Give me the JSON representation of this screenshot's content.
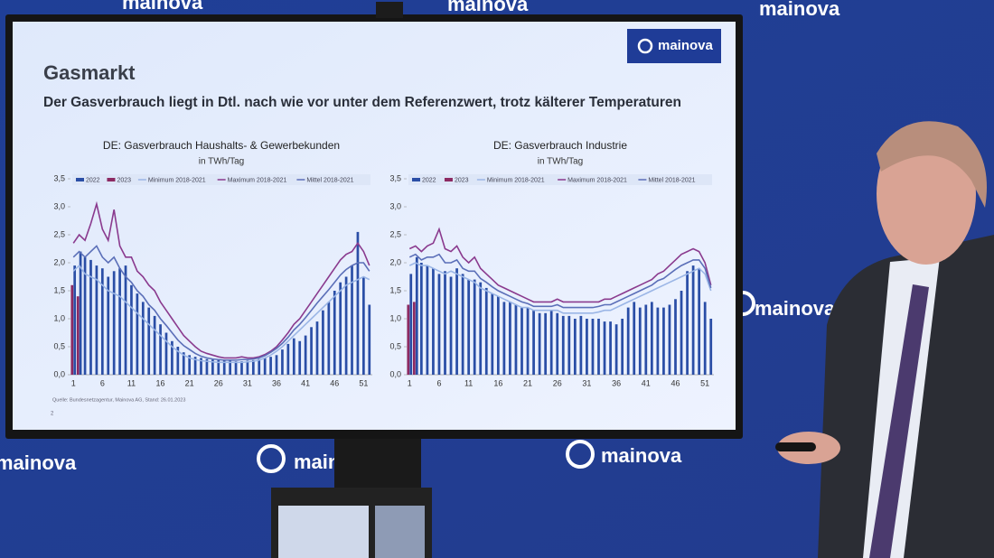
{
  "slide": {
    "title": "Gasmarkt",
    "subtitle": "Der Gasverbrauch liegt in Dtl. nach wie vor unter dem Referenzwert, trotz kälterer Temperaturen",
    "logo": "mainova",
    "source": "Quelle: Bundesnetzagentur, Mainova AG, Stand: 26.01.2023",
    "page": "2"
  },
  "wall": {
    "logo": "mainova"
  },
  "chart_data": [
    {
      "type": "combo",
      "title": "DE: Gasverbrauch Haushalts- & Gewerbekunden",
      "subtitle": "in TWh/Tag",
      "categories": [
        "1",
        null,
        null,
        null,
        null,
        "6",
        null,
        null,
        null,
        null,
        "11",
        null,
        null,
        null,
        null,
        "16",
        null,
        null,
        null,
        null,
        "21",
        null,
        null,
        null,
        null,
        "26",
        null,
        null,
        null,
        null,
        "31",
        null,
        null,
        null,
        null,
        "36",
        null,
        null,
        null,
        null,
        "41",
        null,
        null,
        null,
        null,
        "46",
        null,
        null,
        null,
        null,
        "51",
        null
      ],
      "ylim": [
        0,
        3.5
      ],
      "yticks": [
        {
          "value": 0,
          "label": "0,0"
        },
        {
          "value": 0.5,
          "label": "0,5"
        },
        {
          "value": 1,
          "label": "1,0"
        },
        {
          "value": 1.5,
          "label": "1,5"
        },
        {
          "value": 2,
          "label": "2,0"
        },
        {
          "value": 2.5,
          "label": "2,5"
        },
        {
          "value": 3,
          "label": "3,0"
        },
        {
          "value": 3.5,
          "label": "3,5"
        }
      ],
      "series": [
        {
          "name": "2022",
          "type": "bar",
          "color": "#2a4ea6",
          "values": [
            1.95,
            2.2,
            2.1,
            2.05,
            1.95,
            1.9,
            1.75,
            1.85,
            1.9,
            1.95,
            1.6,
            1.45,
            1.3,
            1.2,
            1.05,
            0.9,
            0.75,
            0.6,
            0.5,
            0.4,
            0.35,
            0.32,
            0.3,
            0.28,
            0.27,
            0.26,
            0.25,
            0.25,
            0.24,
            0.24,
            0.25,
            0.26,
            0.28,
            0.3,
            0.32,
            0.35,
            0.45,
            0.55,
            0.65,
            0.6,
            0.7,
            0.85,
            0.95,
            1.15,
            1.3,
            1.5,
            1.65,
            1.75,
            1.95,
            2.55,
            1.75,
            1.25
          ]
        },
        {
          "name": "2023",
          "type": "bar",
          "color": "#8c2a62",
          "values": [
            1.6,
            1.4,
            null,
            null,
            null,
            null,
            null,
            null,
            null,
            null,
            null,
            null,
            null,
            null,
            null,
            null,
            null,
            null,
            null,
            null,
            null,
            null,
            null,
            null,
            null,
            null,
            null,
            null,
            null,
            null,
            null,
            null,
            null,
            null,
            null,
            null,
            null,
            null,
            null,
            null,
            null,
            null,
            null,
            null,
            null,
            null,
            null,
            null,
            null,
            null,
            null,
            null
          ]
        },
        {
          "name": "Minimum 2018-2021",
          "type": "line",
          "color": "#9bb6e6",
          "values": [
            1.85,
            1.95,
            1.8,
            1.75,
            1.7,
            1.6,
            1.5,
            1.45,
            1.4,
            1.3,
            1.2,
            1.1,
            1.0,
            0.9,
            0.8,
            0.7,
            0.6,
            0.5,
            0.42,
            0.35,
            0.3,
            0.27,
            0.25,
            0.24,
            0.23,
            0.22,
            0.22,
            0.22,
            0.22,
            0.22,
            0.23,
            0.24,
            0.26,
            0.3,
            0.35,
            0.42,
            0.5,
            0.6,
            0.7,
            0.8,
            0.9,
            1.0,
            1.1,
            1.2,
            1.3,
            1.4,
            1.5,
            1.6,
            1.65,
            1.7,
            1.75,
            1.7
          ]
        },
        {
          "name": "Maximum 2018-2021",
          "type": "line",
          "color": "#8a3a8e",
          "values": [
            2.35,
            2.5,
            2.4,
            2.7,
            3.05,
            2.6,
            2.4,
            2.95,
            2.3,
            2.1,
            2.1,
            1.85,
            1.75,
            1.6,
            1.5,
            1.3,
            1.15,
            1.0,
            0.85,
            0.7,
            0.6,
            0.5,
            0.42,
            0.38,
            0.35,
            0.32,
            0.3,
            0.3,
            0.3,
            0.32,
            0.3,
            0.3,
            0.32,
            0.36,
            0.42,
            0.5,
            0.62,
            0.75,
            0.9,
            1.0,
            1.15,
            1.3,
            1.45,
            1.6,
            1.75,
            1.9,
            2.05,
            2.15,
            2.2,
            2.35,
            2.2,
            1.95
          ]
        },
        {
          "name": "Mittel 2018-2021",
          "type": "line",
          "color": "#5b6fb8",
          "values": [
            2.1,
            2.2,
            2.1,
            2.2,
            2.3,
            2.1,
            2.0,
            2.1,
            1.9,
            1.75,
            1.65,
            1.5,
            1.4,
            1.25,
            1.15,
            1.0,
            0.88,
            0.75,
            0.62,
            0.52,
            0.45,
            0.38,
            0.33,
            0.3,
            0.28,
            0.27,
            0.26,
            0.26,
            0.26,
            0.27,
            0.27,
            0.28,
            0.3,
            0.34,
            0.4,
            0.47,
            0.56,
            0.67,
            0.8,
            0.9,
            1.02,
            1.15,
            1.28,
            1.4,
            1.52,
            1.65,
            1.78,
            1.88,
            1.95,
            2.0,
            2.0,
            1.85
          ]
        }
      ]
    },
    {
      "type": "combo",
      "title": "DE: Gasverbrauch Industrie",
      "subtitle": "in TWh/Tag",
      "categories": [
        "1",
        null,
        null,
        null,
        null,
        "6",
        null,
        null,
        null,
        null,
        "11",
        null,
        null,
        null,
        null,
        "16",
        null,
        null,
        null,
        null,
        "21",
        null,
        null,
        null,
        null,
        "26",
        null,
        null,
        null,
        null,
        "31",
        null,
        null,
        null,
        null,
        "36",
        null,
        null,
        null,
        null,
        "41",
        null,
        null,
        null,
        null,
        "46",
        null,
        null,
        null,
        null,
        "51",
        null
      ],
      "ylim": [
        0,
        3.5
      ],
      "yticks": [
        {
          "value": 0,
          "label": "0,0"
        },
        {
          "value": 0.5,
          "label": "0,5"
        },
        {
          "value": 1,
          "label": "1,0"
        },
        {
          "value": 1.5,
          "label": "1,5"
        },
        {
          "value": 2,
          "label": "2,0"
        },
        {
          "value": 2.5,
          "label": "2,5"
        },
        {
          "value": 3,
          "label": "3,0"
        },
        {
          "value": 3.5,
          "label": "3,5"
        }
      ],
      "series": [
        {
          "name": "2022",
          "type": "bar",
          "color": "#2a4ea6",
          "values": [
            1.8,
            2.1,
            2.0,
            1.95,
            1.9,
            1.8,
            1.85,
            1.75,
            1.9,
            1.8,
            1.7,
            1.7,
            1.65,
            1.55,
            1.45,
            1.4,
            1.3,
            1.3,
            1.25,
            1.2,
            1.2,
            1.15,
            1.1,
            1.1,
            1.15,
            1.1,
            1.05,
            1.05,
            1.0,
            1.05,
            1.0,
            1.0,
            1.0,
            0.95,
            0.95,
            0.9,
            1.0,
            1.2,
            1.3,
            1.2,
            1.25,
            1.3,
            1.2,
            1.2,
            1.25,
            1.35,
            1.5,
            1.85,
            1.95,
            1.9,
            1.3,
            1.0
          ]
        },
        {
          "name": "2023",
          "type": "bar",
          "color": "#8c2a62",
          "values": [
            1.25,
            1.3,
            null,
            null,
            null,
            null,
            null,
            null,
            null,
            null,
            null,
            null,
            null,
            null,
            null,
            null,
            null,
            null,
            null,
            null,
            null,
            null,
            null,
            null,
            null,
            null,
            null,
            null,
            null,
            null,
            null,
            null,
            null,
            null,
            null,
            null,
            null,
            null,
            null,
            null,
            null,
            null,
            null,
            null,
            null,
            null,
            null,
            null,
            null,
            null,
            null,
            null
          ]
        },
        {
          "name": "Minimum 2018-2021",
          "type": "line",
          "color": "#9bb6e6",
          "values": [
            1.95,
            2.0,
            1.95,
            1.95,
            1.9,
            1.85,
            1.8,
            1.85,
            1.8,
            1.75,
            1.7,
            1.65,
            1.55,
            1.5,
            1.45,
            1.4,
            1.35,
            1.3,
            1.25,
            1.2,
            1.2,
            1.15,
            1.15,
            1.15,
            1.15,
            1.15,
            1.1,
            1.1,
            1.1,
            1.1,
            1.1,
            1.1,
            1.12,
            1.15,
            1.15,
            1.2,
            1.25,
            1.3,
            1.35,
            1.4,
            1.45,
            1.5,
            1.55,
            1.6,
            1.65,
            1.7,
            1.75,
            1.8,
            1.85,
            1.9,
            1.8,
            1.5
          ]
        },
        {
          "name": "Maximum 2018-2021",
          "type": "line",
          "color": "#8a3a8e",
          "values": [
            2.25,
            2.3,
            2.2,
            2.3,
            2.35,
            2.6,
            2.25,
            2.2,
            2.3,
            2.1,
            2.0,
            2.1,
            1.9,
            1.8,
            1.7,
            1.6,
            1.55,
            1.5,
            1.45,
            1.4,
            1.35,
            1.3,
            1.3,
            1.3,
            1.3,
            1.35,
            1.3,
            1.3,
            1.3,
            1.3,
            1.3,
            1.3,
            1.3,
            1.35,
            1.35,
            1.4,
            1.45,
            1.5,
            1.55,
            1.6,
            1.65,
            1.7,
            1.8,
            1.85,
            1.95,
            2.05,
            2.15,
            2.2,
            2.25,
            2.2,
            2.0,
            1.6
          ]
        },
        {
          "name": "Mittel 2018-2021",
          "type": "line",
          "color": "#5b6fb8",
          "values": [
            2.1,
            2.15,
            2.05,
            2.1,
            2.1,
            2.15,
            2.0,
            2.0,
            2.05,
            1.9,
            1.85,
            1.85,
            1.72,
            1.65,
            1.57,
            1.5,
            1.45,
            1.4,
            1.35,
            1.3,
            1.27,
            1.22,
            1.22,
            1.22,
            1.22,
            1.25,
            1.2,
            1.2,
            1.2,
            1.2,
            1.2,
            1.2,
            1.22,
            1.25,
            1.25,
            1.3,
            1.35,
            1.4,
            1.45,
            1.5,
            1.55,
            1.6,
            1.68,
            1.72,
            1.8,
            1.88,
            1.95,
            2.0,
            2.05,
            2.05,
            1.9,
            1.55
          ]
        }
      ]
    }
  ]
}
